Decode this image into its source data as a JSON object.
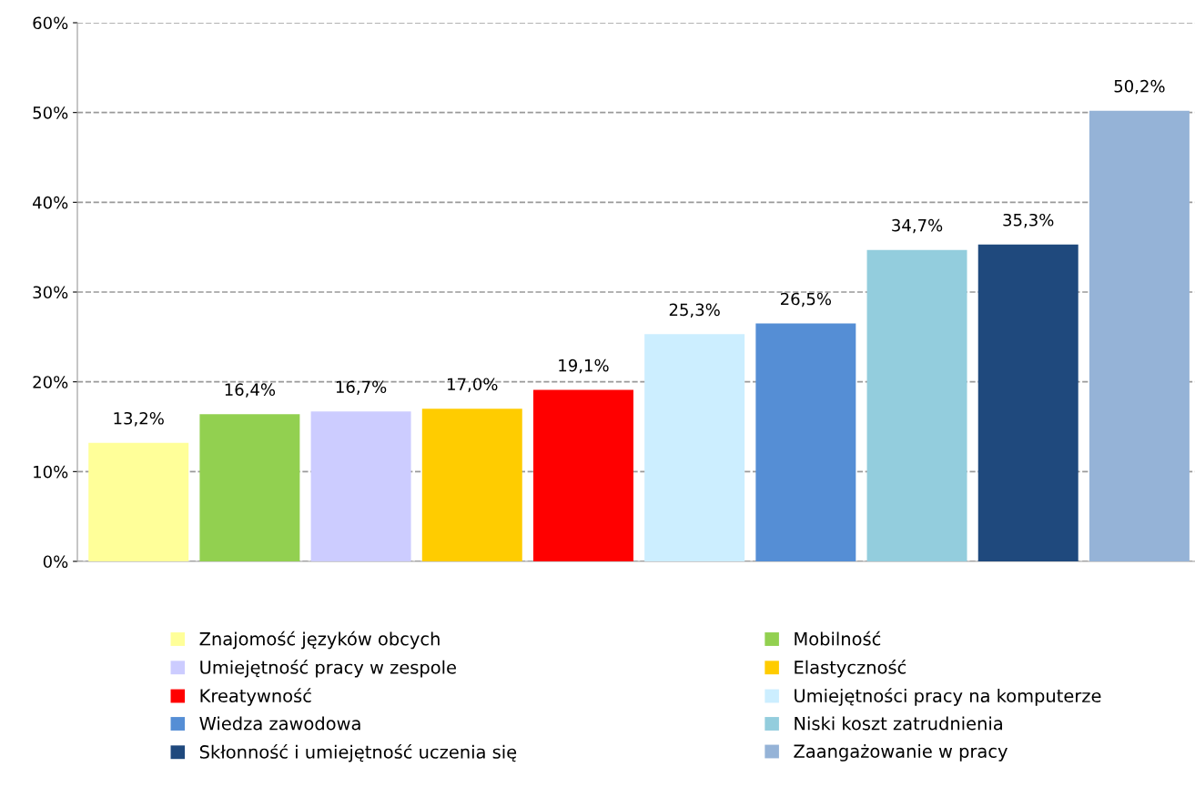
{
  "chart_data": {
    "type": "bar",
    "categories": [
      null,
      null,
      null,
      null,
      null,
      null,
      null,
      null,
      null,
      null
    ],
    "series": [
      {
        "name": "Znajomość języków obcych",
        "color": "#ffff99",
        "values": [
          13.2,
          null,
          null,
          null,
          null,
          null,
          null,
          null,
          null,
          null
        ],
        "value_labels": [
          "13,2%",
          null,
          null,
          null,
          null,
          null,
          null,
          null,
          null,
          null
        ]
      },
      {
        "name": "Mobilność",
        "color": "#92d050",
        "values": [
          null,
          16.4,
          null,
          null,
          null,
          null,
          null,
          null,
          null,
          null
        ],
        "value_labels": [
          null,
          "16,4%",
          null,
          null,
          null,
          null,
          null,
          null,
          null,
          null
        ]
      },
      {
        "name": "Umiejętność pracy w zespole",
        "color": "#ccccff",
        "values": [
          null,
          null,
          16.7,
          null,
          null,
          null,
          null,
          null,
          null,
          null
        ],
        "value_labels": [
          null,
          null,
          "16,7%",
          null,
          null,
          null,
          null,
          null,
          null,
          null
        ]
      },
      {
        "name": "Elastyczność",
        "color": "#ffcc00",
        "values": [
          null,
          null,
          null,
          17.0,
          null,
          null,
          null,
          null,
          null,
          null
        ],
        "value_labels": [
          null,
          null,
          null,
          "17,0%",
          null,
          null,
          null,
          null,
          null,
          null
        ]
      },
      {
        "name": "Kreatywność",
        "color": "#ff0000",
        "values": [
          null,
          null,
          null,
          null,
          19.1,
          null,
          null,
          null,
          null,
          null
        ],
        "value_labels": [
          null,
          null,
          null,
          null,
          "19,1%",
          null,
          null,
          null,
          null,
          null
        ]
      },
      {
        "name": "Umiejętności pracy na komputerze",
        "color": "#cceeff",
        "values": [
          null,
          null,
          null,
          null,
          null,
          25.3,
          null,
          null,
          null,
          null
        ],
        "value_labels": [
          null,
          null,
          null,
          null,
          null,
          "25,3%",
          null,
          null,
          null,
          null
        ]
      },
      {
        "name": "Wiedza zawodowa",
        "color": "#558ed5",
        "values": [
          null,
          null,
          null,
          null,
          null,
          null,
          26.5,
          null,
          null,
          null
        ],
        "value_labels": [
          null,
          null,
          null,
          null,
          null,
          null,
          "26,5%",
          null,
          null,
          null
        ]
      },
      {
        "name": "Niski koszt zatrudnienia",
        "color": "#93cddd",
        "values": [
          null,
          null,
          null,
          null,
          null,
          null,
          null,
          34.7,
          null,
          null
        ],
        "value_labels": [
          null,
          null,
          null,
          null,
          null,
          null,
          null,
          "34,7%",
          null,
          null
        ]
      },
      {
        "name": "Skłonność i umiejętność uczenia się",
        "color": "#1f497d",
        "values": [
          null,
          null,
          null,
          null,
          null,
          null,
          null,
          null,
          35.3,
          null
        ],
        "value_labels": [
          null,
          null,
          null,
          null,
          null,
          null,
          null,
          null,
          "35,3%",
          null
        ]
      },
      {
        "name": "Zaangażowanie w pracy",
        "color": "#95b3d7",
        "values": [
          null,
          null,
          null,
          null,
          null,
          null,
          null,
          null,
          null,
          50.2
        ],
        "value_labels": [
          null,
          null,
          null,
          null,
          null,
          null,
          null,
          null,
          null,
          "50,2%"
        ]
      }
    ],
    "ylim": [
      0,
      60
    ],
    "yticks": [
      {
        "value": 0,
        "label": "0%"
      },
      {
        "value": 10,
        "label": "10%"
      },
      {
        "value": 20,
        "label": "20%"
      },
      {
        "value": 30,
        "label": "30%"
      },
      {
        "value": 40,
        "label": "40%"
      },
      {
        "value": 50,
        "label": "50%"
      },
      {
        "value": 60,
        "label": "60%"
      }
    ],
    "grid": "y",
    "legend": "bottom"
  }
}
